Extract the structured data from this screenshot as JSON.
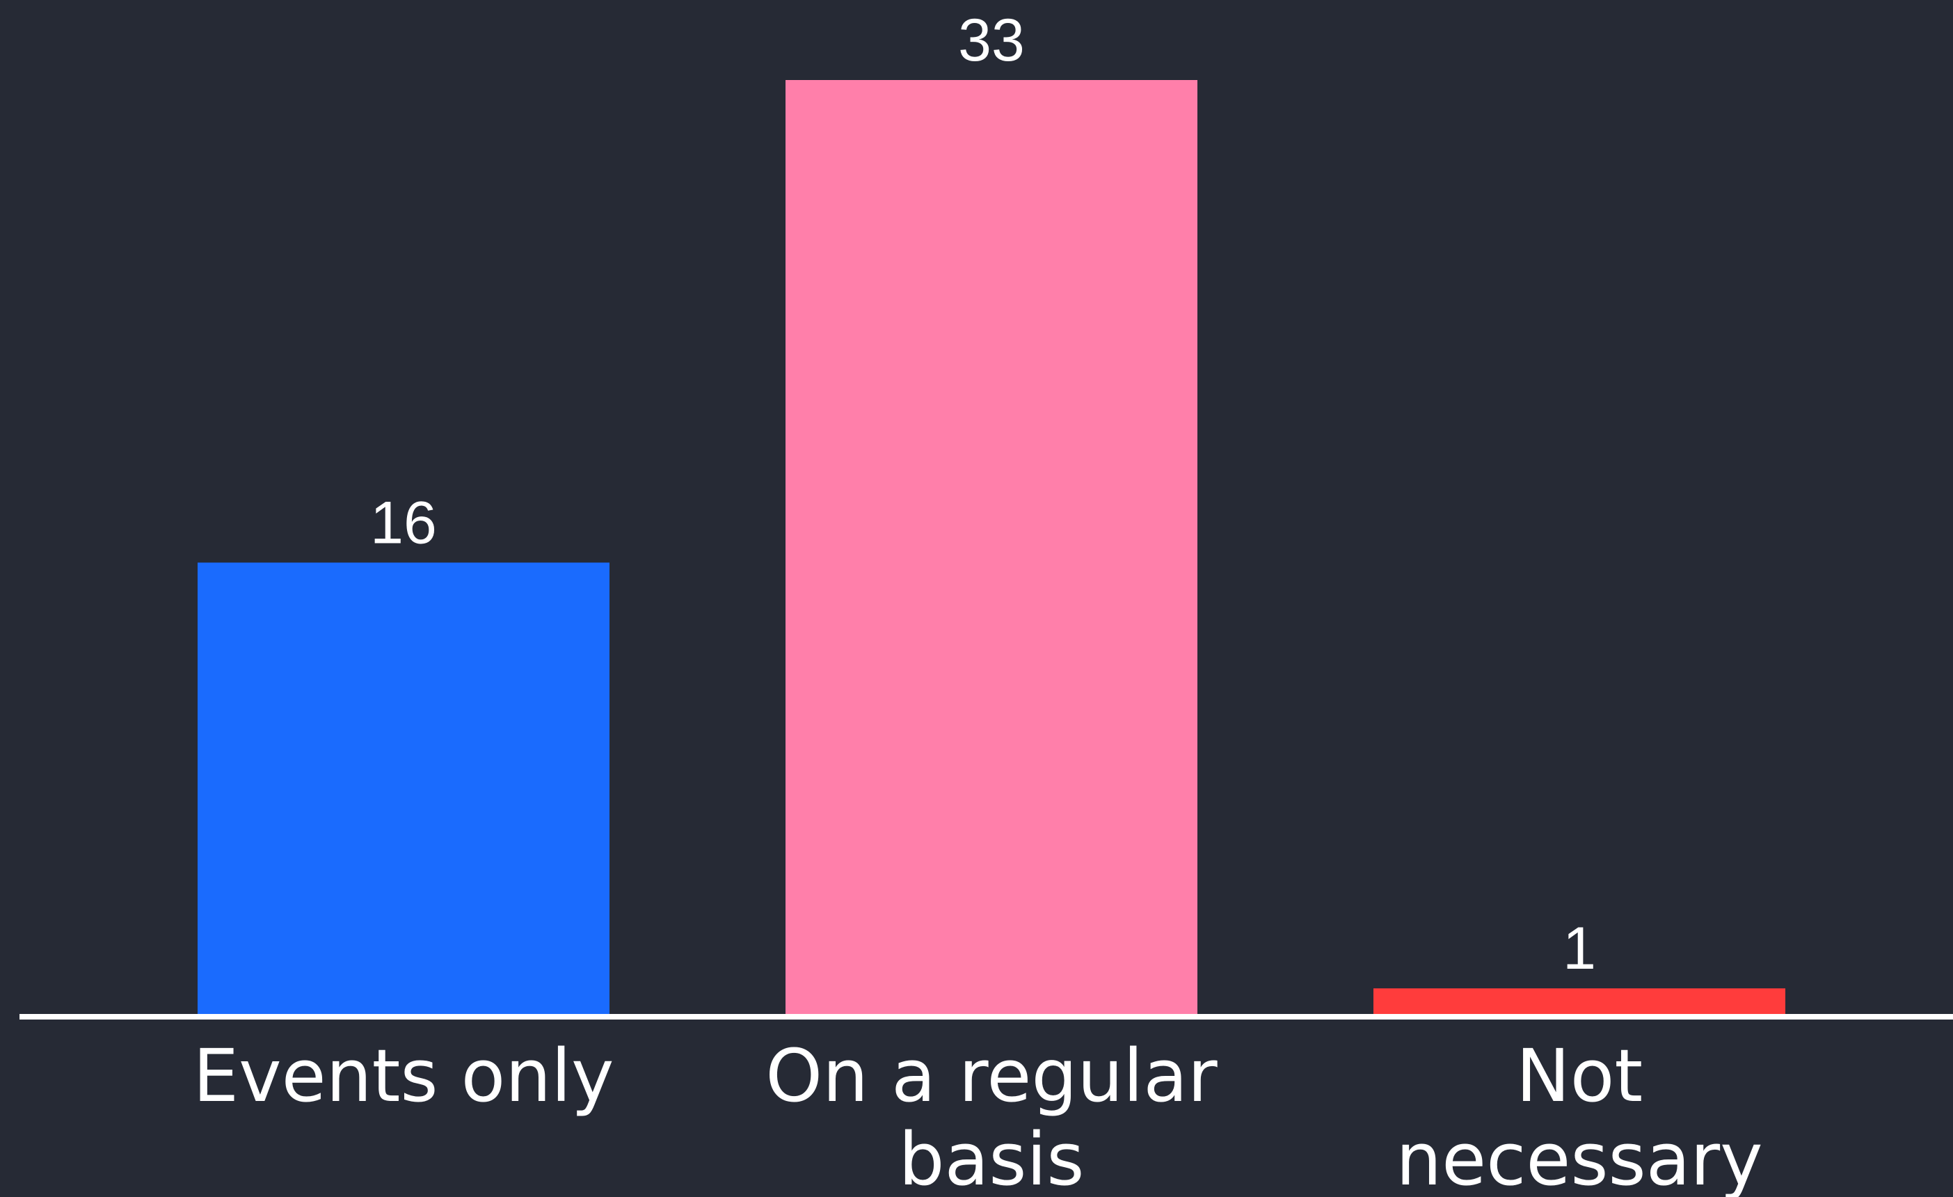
{
  "chart_data": {
    "type": "bar",
    "categories": [
      "Events only",
      "On a regular basis",
      "Not necessary"
    ],
    "category_lines": [
      [
        "Events only"
      ],
      [
        "On a regular",
        "basis"
      ],
      [
        "Not",
        "necessary"
      ]
    ],
    "values": [
      16,
      33,
      1
    ],
    "colors": [
      "#1a6bfe",
      "#ff7faa",
      "#ff3c3c"
    ],
    "ylim": [
      0,
      33
    ],
    "title": "",
    "xlabel": "",
    "ylabel": "",
    "grid": false,
    "legend": "none"
  },
  "theme": {
    "background": "#262a35",
    "axis_color": "#ffffff",
    "text_color": "#ffffff"
  }
}
